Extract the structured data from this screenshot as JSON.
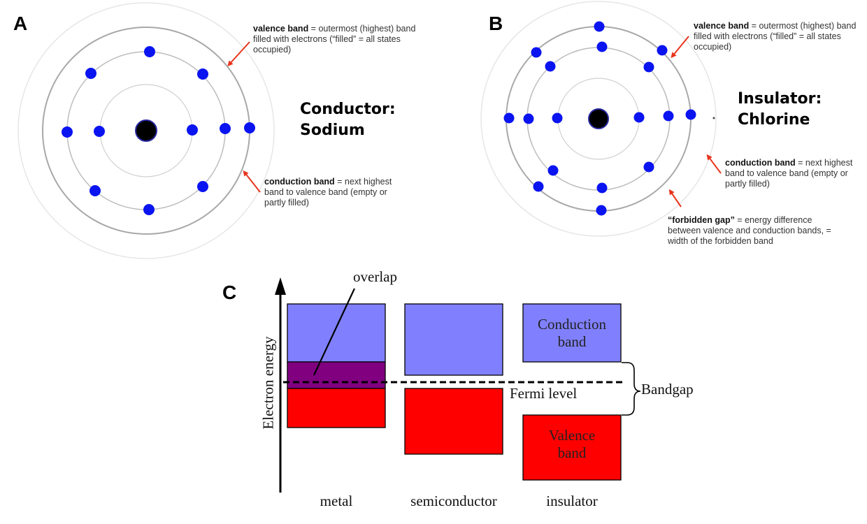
{
  "panels": {
    "a": {
      "letter": "A",
      "title_line1": "Conductor:",
      "title_line2": "Sodium",
      "valence_note": {
        "term": "valence band",
        "line1_rest": " = outermost (highest) band",
        "line2": "filled with electrons (“filled” = all states",
        "line3": "occupied)"
      },
      "conduction_note": {
        "term": "conduction band",
        "line1_rest": " = next highest",
        "line2": "band to valence band (empty or",
        "line3": "partly filled)"
      }
    },
    "b": {
      "letter": "B",
      "title_line1": "Insulator:",
      "title_line2": "Chlorine",
      "valence_note": {
        "term": "valence band",
        "line1_rest": " = outermost (highest) band",
        "line2": "filled with electrons (“filled” = all states",
        "line3": "occupied)"
      },
      "conduction_note": {
        "term": "conduction band",
        "line1_rest": " = next highest",
        "line2": "band to valence band (empty or",
        "line3": "partly filled)"
      },
      "gap_note": {
        "term": "“forbidden gap”",
        "line1_rest": " = energy difference",
        "line2": "between valence and conduction bands, =",
        "line3": "width of the forbidden band"
      }
    },
    "c": {
      "letter": "C",
      "axis_label": "Electron energy",
      "overlap_label": "overlap",
      "fermi_label": "Fermi level",
      "bandgap_label": "Bandgap",
      "conduction_band_line1": "Conduction",
      "conduction_band_line2": "band",
      "valence_band_line1": "Valence",
      "valence_band_line2": "band",
      "materials": [
        "metal",
        "semiconductor",
        "insulator"
      ]
    }
  },
  "colors": {
    "electron": "#0a14f0",
    "nucleus": "#000000",
    "conduction_fill": "#8080ff",
    "valence_fill": "#ff0000",
    "overlap_fill": "#800080",
    "arrow": "#e8341c"
  }
}
